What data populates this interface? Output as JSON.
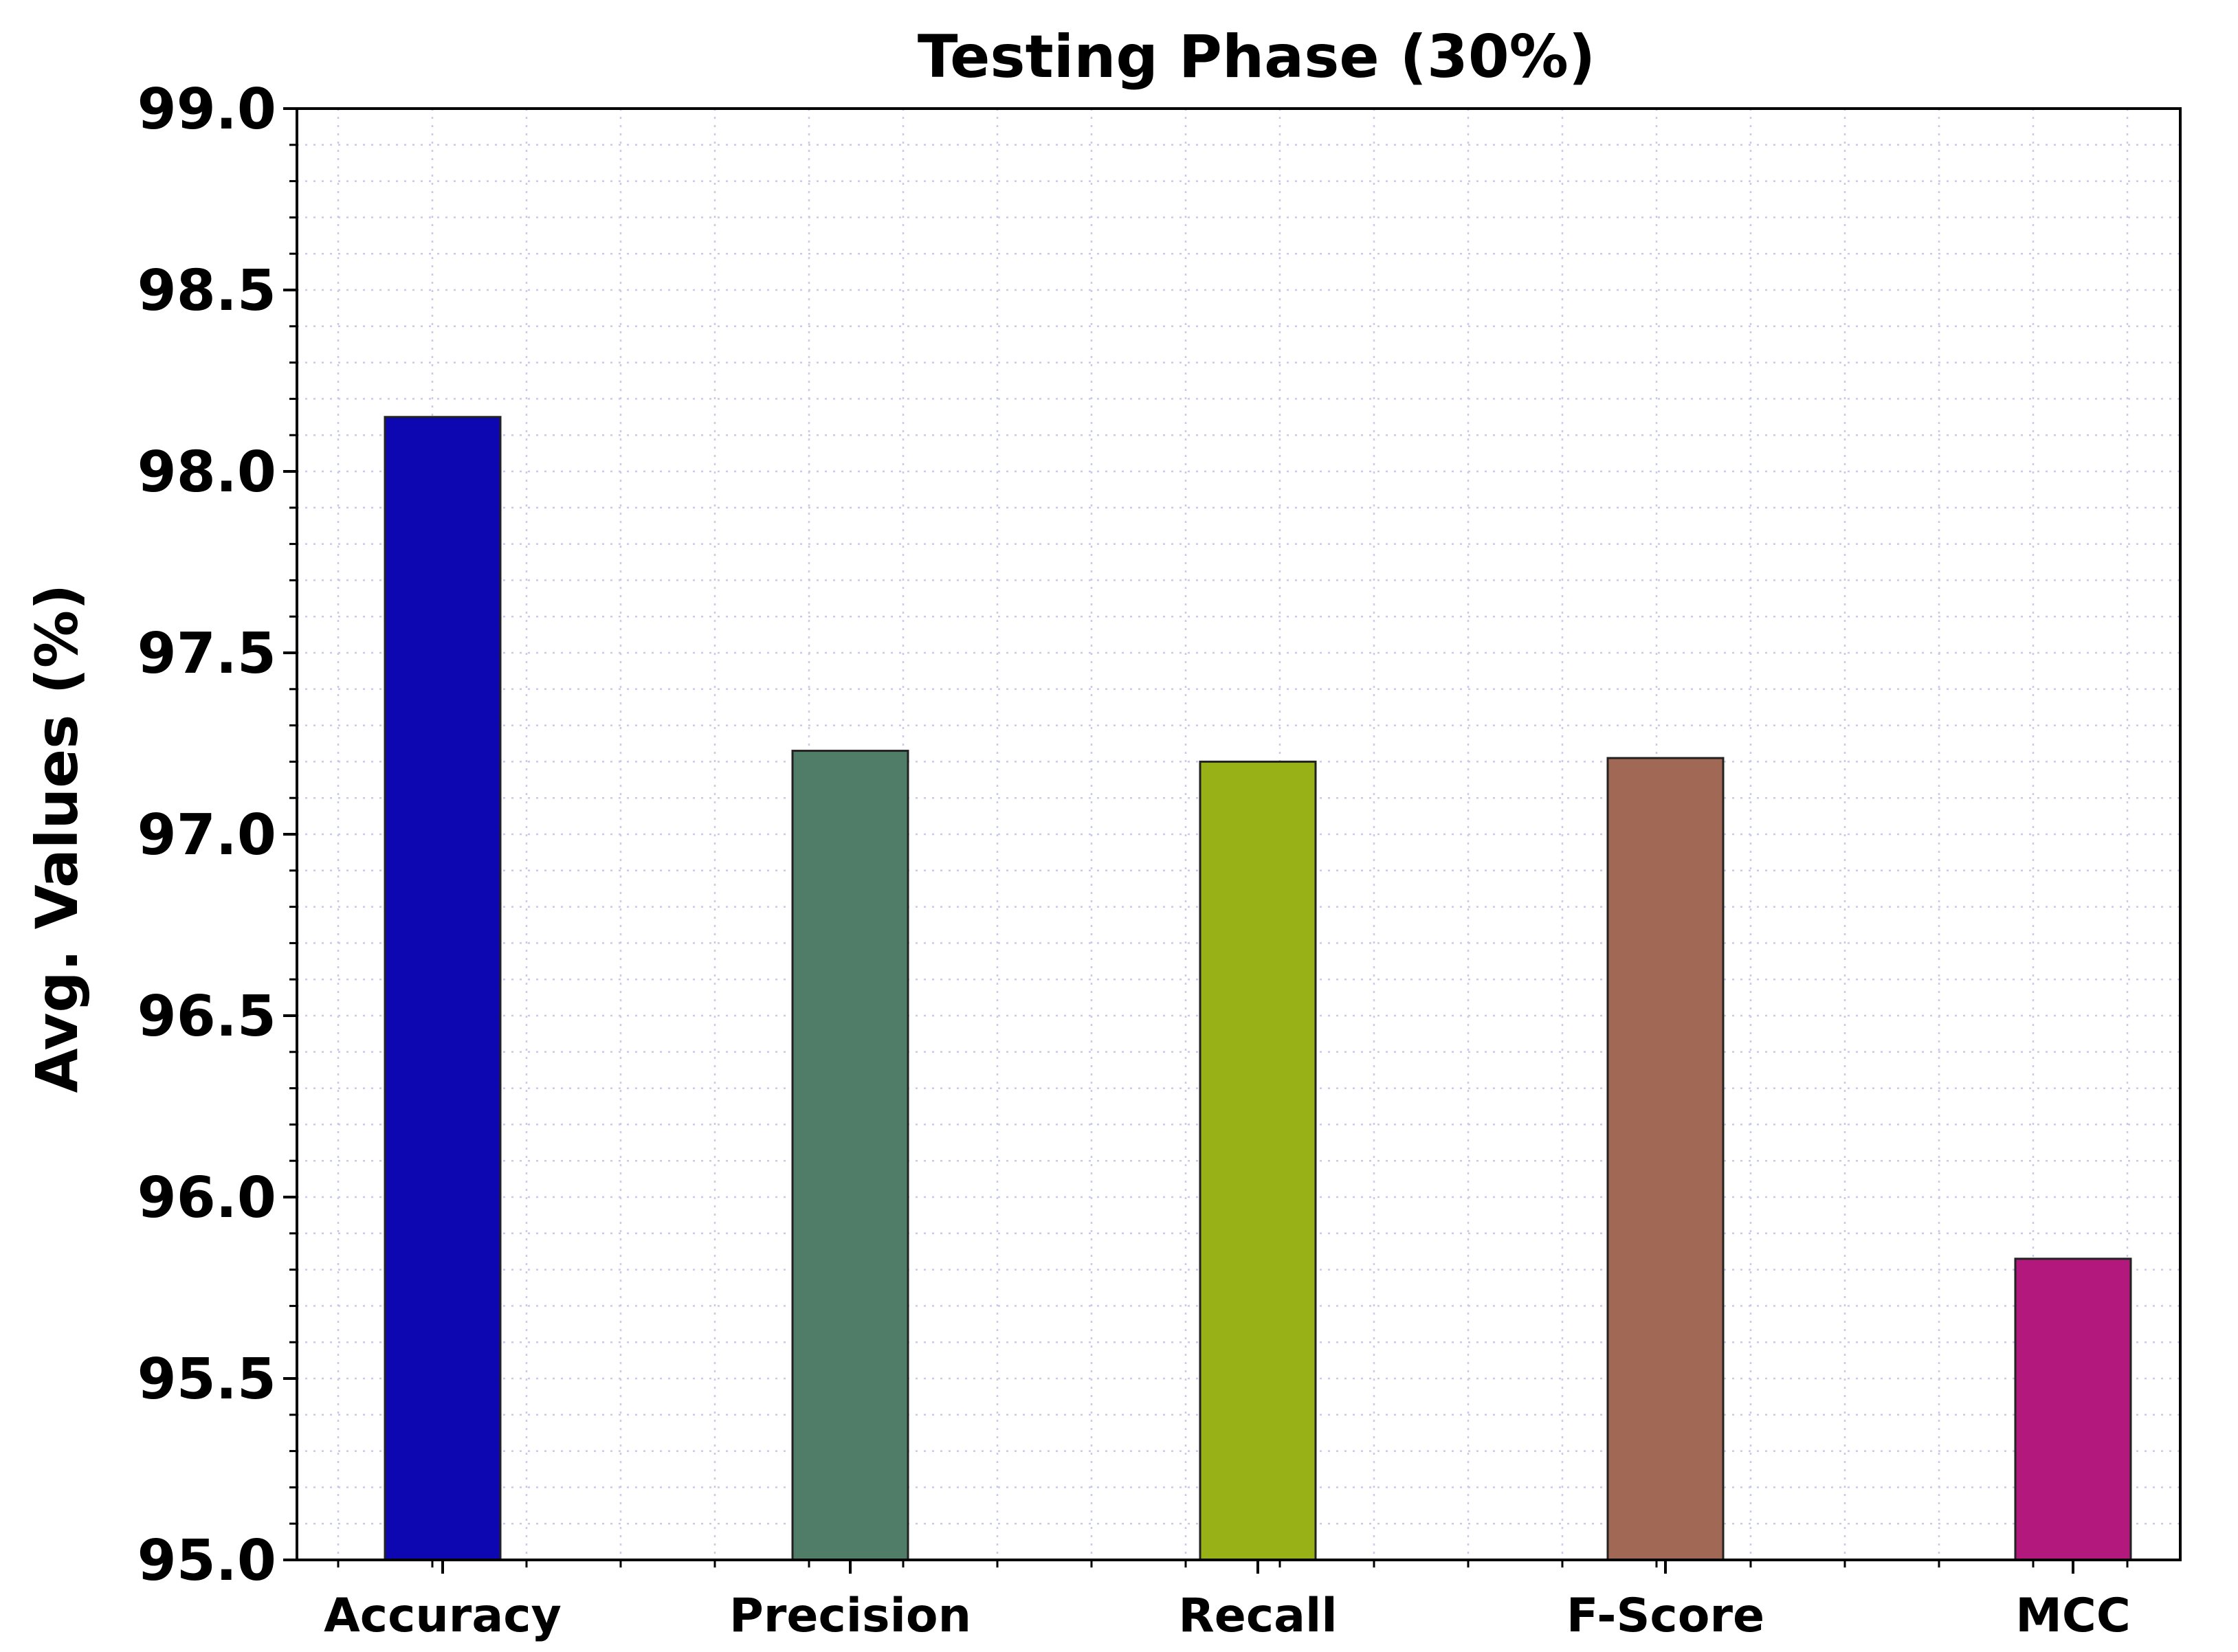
{
  "chart_data": {
    "type": "bar",
    "title": "Testing Phase (30%)",
    "xlabel": "",
    "ylabel": "Avg. Values (%)",
    "ylim": [
      95.0,
      99.0
    ],
    "yticks": [
      "95.0",
      "95.5",
      "96.0",
      "96.5",
      "97.0",
      "97.5",
      "98.0",
      "98.5",
      "99.0"
    ],
    "categories": [
      "Accuracy",
      "Precision",
      "Recall",
      "F-Score",
      "MCC"
    ],
    "values": [
      98.15,
      97.23,
      97.2,
      97.21,
      95.83
    ],
    "colors": [
      "#0d07b1",
      "#4f7d67",
      "#98b116",
      "#a16955",
      "#b3197d"
    ],
    "grid": true
  }
}
